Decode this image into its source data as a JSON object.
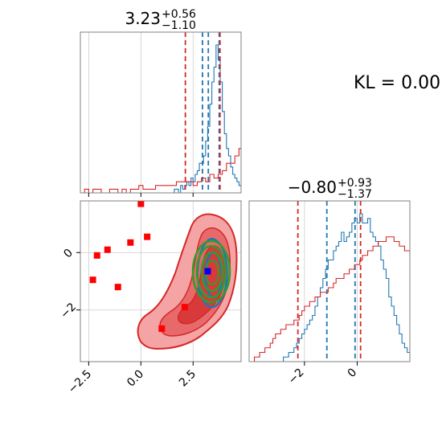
{
  "chart_data": [
    {
      "id": "hist-param1",
      "type": "histogram",
      "title": {
        "median": "3.23",
        "upper": "+0.56",
        "lower": "−1.10"
      },
      "xlim": [
        -2.9,
        4.8
      ],
      "grid": true,
      "series": [
        {
          "name": "blue",
          "color": "#1f77b4",
          "bin_start": 1.5,
          "bin_width": 0.1,
          "counts": [
            0,
            1,
            1,
            0,
            2,
            1,
            2,
            3,
            2,
            4,
            3,
            5,
            6,
            8,
            8,
            10,
            14,
            18,
            24,
            30,
            34,
            40,
            36,
            30,
            22,
            16,
            12,
            10,
            7,
            5,
            4,
            3,
            2,
            1,
            1,
            0,
            0,
            0,
            0,
            0,
            0
          ],
          "quantiles": [
            2.95,
            3.75
          ],
          "median": 3.23
        },
        {
          "name": "red",
          "color": "#d62728",
          "bin_start": -2.7,
          "bin_width": 0.2,
          "counts": [
            1,
            0,
            1,
            1,
            0,
            0,
            1,
            1,
            0,
            1,
            0,
            1,
            1,
            2,
            1,
            1,
            1,
            2,
            2,
            2,
            2,
            2,
            3,
            3,
            3,
            3,
            2,
            3,
            4,
            3,
            5,
            4,
            5,
            6,
            8,
            8,
            10,
            12,
            14,
            18,
            20,
            16,
            14,
            10,
            8,
            5,
            3,
            2,
            1,
            1,
            1,
            0,
            0
          ],
          "quantiles": [
            2.13,
            3.79
          ]
        }
      ]
    },
    {
      "id": "hist-param2",
      "type": "histogram",
      "title": {
        "median": "−0.80",
        "upper": "+0.93",
        "lower": "−1.37"
      },
      "xlim": [
        -4.1,
        2.0
      ],
      "xticks": [
        -2,
        0
      ],
      "tick_labels": [
        "−2",
        "0"
      ],
      "grid": true,
      "series": [
        {
          "name": "blue",
          "color": "#1f77b4",
          "bin_start": -3.0,
          "bin_width": 0.1,
          "counts": [
            0,
            0,
            1,
            1,
            2,
            2,
            3,
            4,
            5,
            6,
            7,
            8,
            9,
            10,
            12,
            14,
            16,
            18,
            20,
            22,
            22,
            24,
            25,
            26,
            28,
            26,
            27,
            28,
            30,
            31,
            30,
            32,
            30,
            30,
            31,
            28,
            27,
            26,
            25,
            22,
            20,
            18,
            14,
            12,
            10,
            8,
            6,
            4,
            3,
            2,
            2,
            1,
            1,
            1,
            0,
            0,
            0,
            0,
            0,
            0
          ],
          "quantiles": [
            -1.15,
            -0.08
          ]
        },
        {
          "name": "red",
          "color": "#d62728",
          "bin_start": -3.9,
          "bin_width": 0.1,
          "counts": [
            1,
            1,
            2,
            2,
            3,
            3,
            4,
            5,
            6,
            6,
            7,
            7,
            8,
            8,
            8,
            9,
            9,
            10,
            11,
            12,
            12,
            13,
            13,
            14,
            14,
            15,
            15,
            15,
            16,
            16,
            17,
            18,
            18,
            18,
            19,
            19,
            20,
            20,
            21,
            21,
            22,
            23,
            23,
            24,
            24,
            25,
            25,
            26,
            26,
            26,
            27,
            27,
            27,
            26,
            26,
            25,
            25,
            24,
            24,
            23,
            20,
            18,
            16,
            14,
            12,
            10,
            8,
            6,
            5,
            4,
            3,
            2,
            2,
            1,
            1,
            1,
            0,
            0,
            0,
            0,
            0,
            0,
            0,
            0,
            0,
            0,
            0,
            0,
            0,
            0,
            0
          ],
          "quantiles": [
            -2.25,
            0.13
          ]
        }
      ]
    },
    {
      "id": "scatter-2d",
      "type": "scatter",
      "xlim": [
        -2.9,
        4.8
      ],
      "ylim": [
        -3.8,
        1.8
      ],
      "xticks": [
        -2.5,
        0.0,
        2.5
      ],
      "xtick_labels": [
        "−2.5",
        "0.0",
        "2.5"
      ],
      "yticks": [
        0,
        -2
      ],
      "ytick_labels": [
        "0",
        "−2"
      ],
      "grid": true,
      "square_points": {
        "color": "#ff0000",
        "x": [
          0.0,
          -2.1,
          -1.6,
          -0.5,
          0.3,
          -2.3,
          -1.1,
          1.0,
          2.1
        ],
        "y": [
          1.7,
          -0.1,
          0.1,
          0.35,
          0.55,
          -0.95,
          -1.2,
          -2.65,
          -1.9
        ]
      },
      "marker": {
        "color": "#0000ff",
        "x": 3.2,
        "y": -0.65
      },
      "contours": [
        {
          "name": "red-outer",
          "color": "#d62728",
          "fill": "#f4a4a4"
        },
        {
          "name": "red-middle",
          "color": "#d62728",
          "fill": "#e8696a"
        },
        {
          "name": "red-inner",
          "color": "#d62728",
          "fill": "#d83a3b"
        },
        {
          "name": "blue",
          "color": "#1f77b4"
        },
        {
          "name": "green",
          "color": "#2ca02c"
        }
      ]
    }
  ],
  "annotation": {
    "text": "KL = 0.00"
  }
}
